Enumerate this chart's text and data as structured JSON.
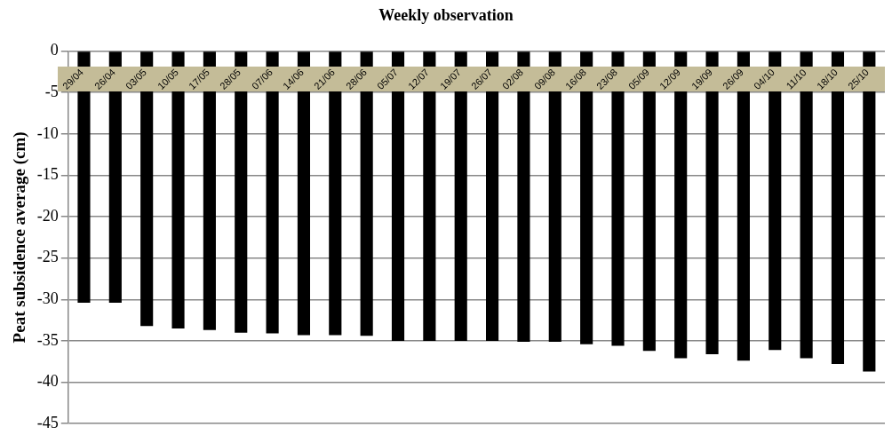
{
  "chart_data": {
    "type": "bar",
    "title": "Weekly observation",
    "ylabel": "Peat subsidence average (cm)",
    "categories": [
      "29/04",
      "26/04",
      "03/05",
      "10/05",
      "17/05",
      "28/05",
      "07/06",
      "14/06",
      "21/06",
      "28/06",
      "05/07",
      "12/07",
      "19/07",
      "26/07",
      "02/08",
      "09/08",
      "16/08",
      "23/08",
      "05/09",
      "12/09",
      "19/09",
      "26/09",
      "04/10",
      "11/10",
      "18/10",
      "25/10"
    ],
    "values": [
      -30.4,
      -30.4,
      -33.2,
      -33.5,
      -33.7,
      -34.0,
      -34.1,
      -34.3,
      -34.3,
      -34.4,
      -35.0,
      -35.0,
      -35.0,
      -35.0,
      -35.1,
      -35.1,
      -35.4,
      -35.6,
      -36.2,
      -37.1,
      -36.6,
      -37.4,
      -36.1,
      -37.1,
      -37.8,
      -38.7
    ],
    "color": "#000000",
    "ylim": [
      -45,
      0
    ],
    "yticks": [
      0,
      -5,
      -10,
      -15,
      -20,
      -25,
      -30,
      -35,
      -40,
      -45
    ],
    "grid": "y"
  }
}
